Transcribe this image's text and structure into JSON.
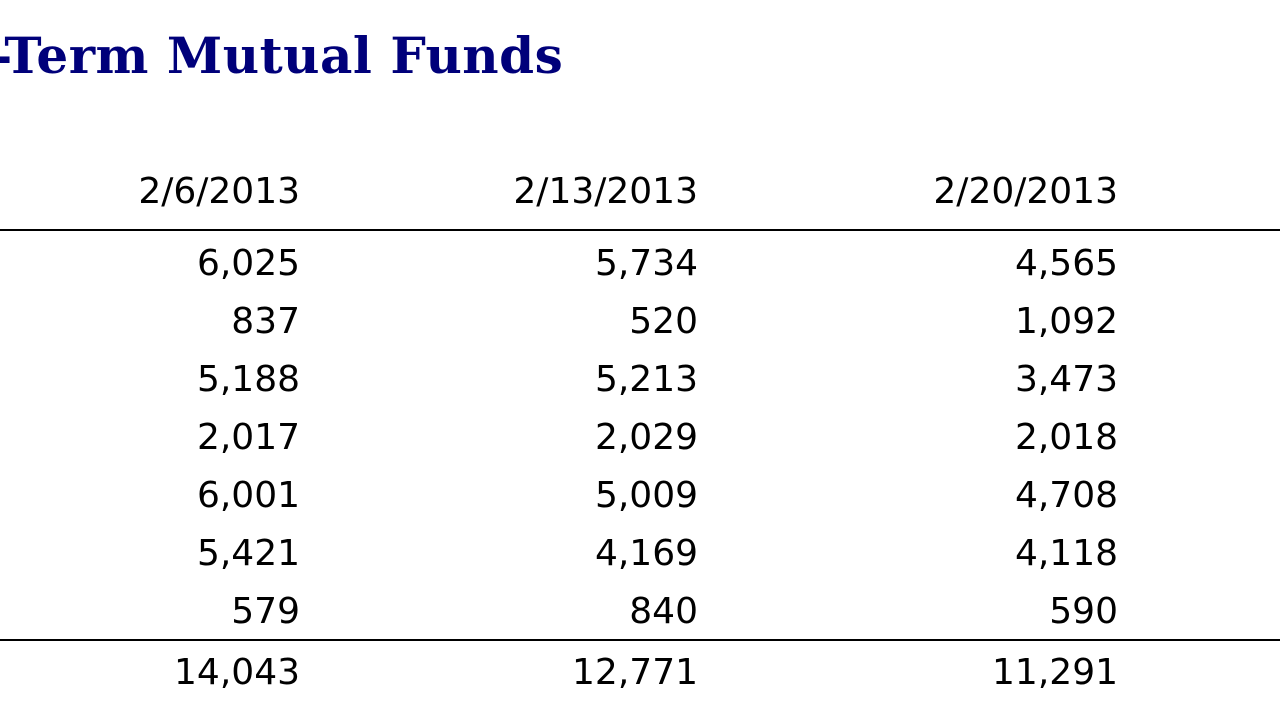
{
  "title": "g-Term Mutual Funds",
  "columns": [
    "2/6/2013",
    "2/13/2013",
    "2/20/2013"
  ],
  "rows": [
    [
      "6,025",
      "5,734",
      "4,565"
    ],
    [
      "837",
      "520",
      "1,092"
    ],
    [
      "5,188",
      "5,213",
      "3,473"
    ],
    [
      "2,017",
      "2,029",
      "2,018"
    ],
    [
      "6,001",
      "5,009",
      "4,708"
    ],
    [
      "5,421",
      "4,169",
      "4,118"
    ],
    [
      "579",
      "840",
      "590"
    ]
  ],
  "total": [
    "14,043",
    "12,771",
    "11,291"
  ]
}
